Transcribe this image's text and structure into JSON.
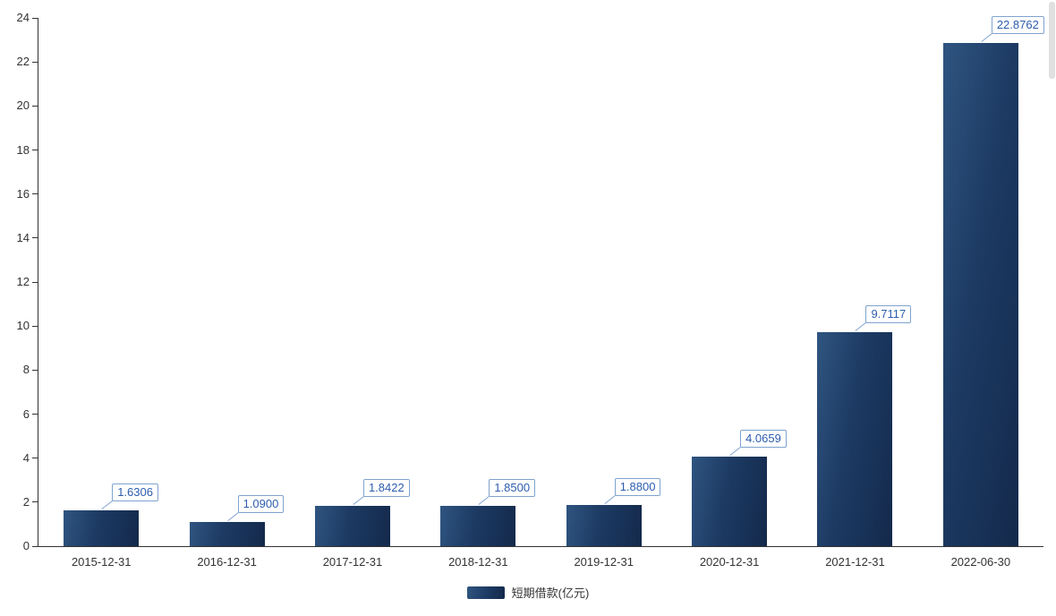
{
  "chart_data": {
    "type": "bar",
    "title": "",
    "xlabel": "",
    "ylabel": "",
    "categories": [
      "2015-12-31",
      "2016-12-31",
      "2017-12-31",
      "2018-12-31",
      "2019-12-31",
      "2020-12-31",
      "2021-12-31",
      "2022-06-30"
    ],
    "values": [
      1.6306,
      1.09,
      1.8422,
      1.85,
      1.88,
      4.0659,
      9.7117,
      22.8762
    ],
    "value_labels": [
      "1.6306",
      "1.0900",
      "1.8422",
      "1.8500",
      "1.8800",
      "4.0659",
      "9.7117",
      "22.8762"
    ],
    "series_name": "短期借款(亿元)",
    "ylim": [
      0,
      24
    ],
    "ytick_step": 2,
    "grid": false,
    "legend_position": "bottom",
    "colors": {
      "bar_main": "#1c3a63",
      "bar_light": "#2f5580",
      "bar_dark": "#14294b",
      "axis": "#333333",
      "value_text": "#2d5dae",
      "value_border": "#7fa3cf",
      "tick_text": "#333333"
    }
  },
  "legend": {
    "label": "短期借款(亿元)"
  }
}
